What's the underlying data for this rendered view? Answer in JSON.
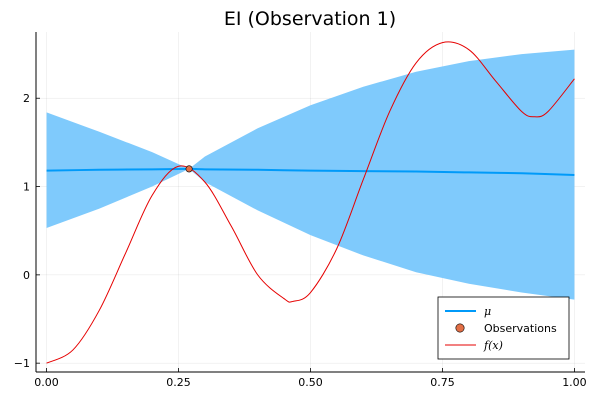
{
  "chart_data": {
    "type": "line",
    "title": "EI (Observation 1)",
    "xlabel": "",
    "ylabel": "",
    "xlim": [
      -0.02,
      1.02
    ],
    "ylim": [
      -1.1,
      2.75
    ],
    "xticks": [
      0.0,
      0.25,
      0.5,
      0.75,
      1.0
    ],
    "xtick_labels": [
      "0.00",
      "0.25",
      "0.50",
      "0.75",
      "1.00"
    ],
    "yticks": [
      -1,
      0,
      1,
      2
    ],
    "ytick_labels": [
      "−1",
      "0",
      "1",
      "2"
    ],
    "grid": true,
    "legend_position": "bottom-right",
    "colors": {
      "mu": "#009af9",
      "band": "#7fcafc",
      "observation": "#e26f46",
      "f": "#e60000"
    },
    "series": [
      {
        "name": "μ",
        "kind": "line",
        "x": [
          0.0,
          0.1,
          0.2,
          0.27,
          0.3,
          0.4,
          0.5,
          0.6,
          0.7,
          0.8,
          0.9,
          1.0
        ],
        "values": [
          1.18,
          1.19,
          1.195,
          1.2,
          1.195,
          1.19,
          1.18,
          1.175,
          1.17,
          1.16,
          1.15,
          1.13
        ],
        "lower": [
          0.53,
          0.75,
          1.0,
          1.2,
          1.05,
          0.73,
          0.45,
          0.22,
          0.03,
          -0.1,
          -0.2,
          -0.28
        ],
        "upper": [
          1.84,
          1.62,
          1.39,
          1.2,
          1.34,
          1.66,
          1.92,
          2.13,
          2.3,
          2.42,
          2.5,
          2.55
        ]
      },
      {
        "name": "Observations",
        "kind": "scatter",
        "x": [
          0.27
        ],
        "values": [
          1.2
        ]
      },
      {
        "name": "f(x)",
        "kind": "line",
        "x": [
          0.0,
          0.05,
          0.1,
          0.15,
          0.2,
          0.25,
          0.3,
          0.35,
          0.4,
          0.45,
          0.467,
          0.5,
          0.55,
          0.6,
          0.65,
          0.7,
          0.75,
          0.8,
          0.85,
          0.9,
          0.925,
          0.95,
          1.0
        ],
        "values": [
          -1.0,
          -0.85,
          -0.4,
          0.25,
          0.9,
          1.23,
          1.05,
          0.55,
          0.0,
          -0.27,
          -0.3,
          -0.2,
          0.3,
          1.08,
          1.85,
          2.4,
          2.63,
          2.55,
          2.2,
          1.85,
          1.79,
          1.85,
          2.22
        ]
      }
    ]
  }
}
